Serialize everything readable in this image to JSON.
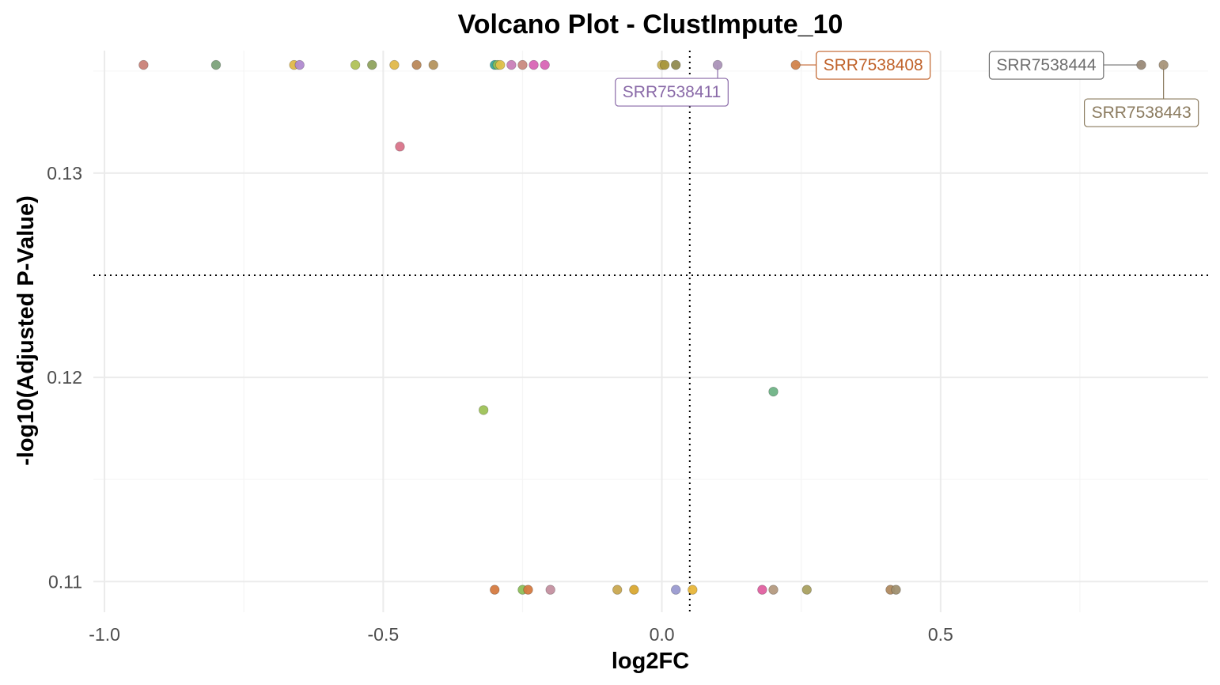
{
  "chart_data": {
    "type": "scatter",
    "title": "Volcano Plot - ClustImpute_10",
    "xlabel": "log2FC",
    "ylabel": "-log10(Adjusted P-Value)",
    "xlim": [
      -1.02,
      0.98
    ],
    "ylim": [
      0.1085,
      0.136
    ],
    "x_ticks": [
      -1.0,
      -0.5,
      0.0,
      0.5
    ],
    "x_tick_labels": [
      "-1.0",
      "-0.5",
      "0.0",
      "0.5"
    ],
    "y_ticks": [
      0.11,
      0.12,
      0.13
    ],
    "y_tick_labels": [
      "0.11",
      "0.12",
      "0.13"
    ],
    "grid": true,
    "legend": "none",
    "thresholds": {
      "x": 0.05,
      "y": 0.125
    },
    "points": [
      {
        "x": -0.93,
        "y": 0.1353,
        "color": "#c98278"
      },
      {
        "x": -0.8,
        "y": 0.1353,
        "color": "#7da27b"
      },
      {
        "x": -0.66,
        "y": 0.1353,
        "color": "#e0b84a"
      },
      {
        "x": -0.65,
        "y": 0.1353,
        "color": "#b08ad0"
      },
      {
        "x": -0.55,
        "y": 0.1353,
        "color": "#b0c257"
      },
      {
        "x": -0.52,
        "y": 0.1353,
        "color": "#8fa35e"
      },
      {
        "x": -0.48,
        "y": 0.1353,
        "color": "#e0b84a"
      },
      {
        "x": -0.44,
        "y": 0.1353,
        "color": "#b9885a"
      },
      {
        "x": -0.41,
        "y": 0.1353,
        "color": "#b4935f"
      },
      {
        "x": -0.3,
        "y": 0.1353,
        "color": "#3aa79c"
      },
      {
        "x": -0.295,
        "y": 0.1353,
        "color": "#8dbf5a"
      },
      {
        "x": -0.29,
        "y": 0.1353,
        "color": "#e0c04a"
      },
      {
        "x": -0.27,
        "y": 0.1353,
        "color": "#c97fb8"
      },
      {
        "x": -0.25,
        "y": 0.1353,
        "color": "#c98a80"
      },
      {
        "x": -0.23,
        "y": 0.1353,
        "color": "#d866b5"
      },
      {
        "x": -0.21,
        "y": 0.1353,
        "color": "#d866b5"
      },
      {
        "x": 0.0,
        "y": 0.1353,
        "color": "#c9b35a"
      },
      {
        "x": 0.005,
        "y": 0.1353,
        "color": "#a8963c"
      },
      {
        "x": 0.025,
        "y": 0.1353,
        "color": "#908a50"
      },
      {
        "x": 0.1,
        "y": 0.1353,
        "color": "#ab94b8",
        "label": "SRR7538411",
        "label_color": "#8a6aa8"
      },
      {
        "x": 0.24,
        "y": 0.1353,
        "color": "#d1844d",
        "label": "SRR7538408",
        "label_color": "#c0622a"
      },
      {
        "x": 0.86,
        "y": 0.1353,
        "color": "#9a8a78",
        "label": "SRR7538444",
        "label_color": "#6e6e6e"
      },
      {
        "x": 0.9,
        "y": 0.1353,
        "color": "#a8957a",
        "label": "SRR7538443",
        "label_color": "#8a7a5e"
      },
      {
        "x": -0.47,
        "y": 0.1313,
        "color": "#d9748a"
      },
      {
        "x": -0.32,
        "y": 0.1184,
        "color": "#9ec257"
      },
      {
        "x": 0.2,
        "y": 0.1193,
        "color": "#6fb386"
      },
      {
        "x": -0.3,
        "y": 0.1096,
        "color": "#d57a40"
      },
      {
        "x": -0.25,
        "y": 0.1096,
        "color": "#8dbf5a"
      },
      {
        "x": -0.24,
        "y": 0.1096,
        "color": "#d57a40"
      },
      {
        "x": -0.2,
        "y": 0.1096,
        "color": "#c490a0"
      },
      {
        "x": -0.08,
        "y": 0.1096,
        "color": "#c9a850"
      },
      {
        "x": -0.05,
        "y": 0.1096,
        "color": "#d9a830"
      },
      {
        "x": 0.025,
        "y": 0.1096,
        "color": "#9a9ad0"
      },
      {
        "x": 0.055,
        "y": 0.1096,
        "color": "#e8b63a"
      },
      {
        "x": 0.18,
        "y": 0.1096,
        "color": "#e060a0"
      },
      {
        "x": 0.2,
        "y": 0.1096,
        "color": "#b49a80"
      },
      {
        "x": 0.26,
        "y": 0.1096,
        "color": "#a9a060"
      },
      {
        "x": 0.41,
        "y": 0.1096,
        "color": "#b08a60"
      },
      {
        "x": 0.42,
        "y": 0.1096,
        "color": "#a09070"
      }
    ]
  }
}
